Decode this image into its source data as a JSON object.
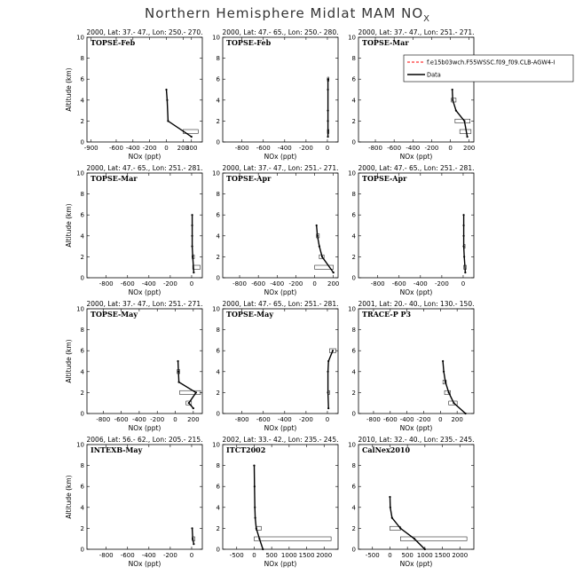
{
  "figure": {
    "title_main": "Northern Hemisphere Midlat MAM NO",
    "title_sub": "X"
  },
  "legend": {
    "model_label": "f.e15b03wch.F55WSSC.f09_f09.CLB-AGW4-I",
    "obs_label": "Data",
    "model_color": "#ff0000",
    "obs_color": "#000000"
  },
  "chart_data": [
    {
      "type": "line",
      "campaign": "TOPSE-Feb",
      "header": "2000, Lat: 37.- 47., Lon: 250.- 270.",
      "xlabel": "NOx (ppt)",
      "ylabel": "Altitude (km)",
      "xlim": [
        -950,
        430
      ],
      "xticks": [
        -900,
        -600,
        -400,
        -200,
        0,
        200,
        300
      ],
      "ylim": [
        0,
        10
      ],
      "yticks": [
        0,
        2,
        4,
        6,
        8,
        10
      ],
      "series": [
        {
          "name": "Data",
          "x": [
            0,
            10,
            20,
            300
          ],
          "y": [
            5,
            4,
            2,
            0.5
          ]
        }
      ],
      "boxes": [
        {
          "y": 1,
          "x0": 200,
          "x1": 380
        }
      ]
    },
    {
      "type": "line",
      "campaign": "TOPSE-Feb",
      "header": "2000, Lat: 47.- 65., Lon: 250.- 280.",
      "xlabel": "NOx (ppt)",
      "ylabel": "",
      "xlim": [
        -980,
        100
      ],
      "xticks": [
        -800,
        -600,
        -400,
        -200,
        0
      ],
      "ylim": [
        0,
        10
      ],
      "yticks": [
        0,
        2,
        4,
        6,
        8,
        10
      ],
      "series": [
        {
          "name": "Data",
          "x": [
            5,
            5,
            5,
            5,
            5
          ],
          "y": [
            6,
            5,
            3,
            2,
            0.5
          ]
        }
      ],
      "boxes": [
        {
          "y": 6,
          "x0": 0,
          "x1": 15
        },
        {
          "y": 1,
          "x0": 0,
          "x1": 15
        }
      ]
    },
    {
      "type": "line",
      "campaign": "TOPSE-Mar",
      "header": "2000, Lat: 37.- 47., Lon: 251.- 271.",
      "xlabel": "NOx (ppt)",
      "ylabel": "",
      "xlim": [
        -980,
        250
      ],
      "xticks": [
        -800,
        -600,
        -400,
        -200,
        0,
        200
      ],
      "ylim": [
        0,
        10
      ],
      "yticks": [
        0,
        2,
        4,
        6,
        8,
        10
      ],
      "series": [
        {
          "name": "Data",
          "x": [
            20,
            25,
            60,
            150,
            180
          ],
          "y": [
            5,
            4,
            3,
            2,
            0.5
          ]
        }
      ],
      "boxes": [
        {
          "y": 4,
          "x0": 10,
          "x1": 60
        },
        {
          "y": 2,
          "x0": 50,
          "x1": 210
        },
        {
          "y": 1,
          "x0": 100,
          "x1": 220
        }
      ]
    },
    {
      "type": "line",
      "campaign": "TOPSE-Mar",
      "header": "2000, Lat: 47.- 65., Lon: 251.- 281.",
      "xlabel": "NOx (ppt)",
      "ylabel": "Altitude (km)",
      "xlim": [
        -980,
        100
      ],
      "xticks": [
        -800,
        -600,
        -400,
        -200,
        0
      ],
      "ylim": [
        0,
        10
      ],
      "yticks": [
        0,
        2,
        4,
        6,
        8,
        10
      ],
      "series": [
        {
          "name": "Data",
          "x": [
            5,
            5,
            5,
            5,
            10,
            20
          ],
          "y": [
            6,
            5,
            4,
            3,
            2,
            0.5
          ]
        }
      ],
      "boxes": [
        {
          "y": 2,
          "x0": 5,
          "x1": 25
        },
        {
          "y": 1,
          "x0": 10,
          "x1": 80
        }
      ]
    },
    {
      "type": "line",
      "campaign": "TOPSE-Apr",
      "header": "2000, Lat: 37.- 47., Lon: 251.- 271.",
      "xlabel": "NOx (ppt)",
      "ylabel": "",
      "xlim": [
        -980,
        250
      ],
      "xticks": [
        -800,
        -600,
        -400,
        -200,
        0,
        200
      ],
      "ylim": [
        0,
        10
      ],
      "yticks": [
        0,
        2,
        4,
        6,
        8,
        10
      ],
      "series": [
        {
          "name": "Data",
          "x": [
            20,
            30,
            50,
            80,
            200
          ],
          "y": [
            5,
            4,
            3,
            2,
            0.5
          ]
        }
      ],
      "boxes": [
        {
          "y": 4,
          "x0": 20,
          "x1": 50
        },
        {
          "y": 2,
          "x0": 50,
          "x1": 100
        },
        {
          "y": 1,
          "x0": 0,
          "x1": 200
        }
      ]
    },
    {
      "type": "line",
      "campaign": "TOPSE-Apr",
      "header": "2000, Lat: 47.- 65., Lon: 251.- 281.",
      "xlabel": "NOx (ppt)",
      "ylabel": "",
      "xlim": [
        -980,
        100
      ],
      "xticks": [
        -800,
        -600,
        -400,
        -200,
        0
      ],
      "ylim": [
        0,
        10
      ],
      "yticks": [
        0,
        2,
        4,
        6,
        8,
        10
      ],
      "series": [
        {
          "name": "Data",
          "x": [
            5,
            5,
            5,
            5,
            10,
            20
          ],
          "y": [
            6,
            5,
            4,
            3,
            2,
            0.5
          ]
        }
      ],
      "boxes": [
        {
          "y": 3,
          "x0": 5,
          "x1": 15
        },
        {
          "y": 1,
          "x0": 5,
          "x1": 30
        }
      ]
    },
    {
      "type": "line",
      "campaign": "TOPSE-May",
      "header": "2000, Lat: 37.- 47., Lon: 251.- 271.",
      "xlabel": "NOx (ppt)",
      "ylabel": "Altitude (km)",
      "xlim": [
        -980,
        300
      ],
      "xticks": [
        -800,
        -600,
        -400,
        -200,
        0,
        200
      ],
      "ylim": [
        0,
        10
      ],
      "yticks": [
        0,
        2,
        4,
        6,
        8,
        10
      ],
      "series": [
        {
          "name": "Data",
          "x": [
            30,
            35,
            40,
            230,
            150,
            200
          ],
          "y": [
            5,
            4,
            3,
            2,
            1,
            0.5
          ]
        }
      ],
      "boxes": [
        {
          "y": 4,
          "x0": 20,
          "x1": 50
        },
        {
          "y": 2,
          "x0": 50,
          "x1": 280
        },
        {
          "y": 1,
          "x0": 120,
          "x1": 180
        }
      ]
    },
    {
      "type": "line",
      "campaign": "TOPSE-May",
      "header": "2000, Lat: 47.- 65., Lon: 251.- 281.",
      "xlabel": "NOx (ppt)",
      "ylabel": "",
      "xlim": [
        -980,
        100
      ],
      "xticks": [
        -800,
        -600,
        -400,
        -200,
        0
      ],
      "ylim": [
        0,
        10
      ],
      "yticks": [
        0,
        2,
        4,
        6,
        8,
        10
      ],
      "series": [
        {
          "name": "Data",
          "x": [
            50,
            10,
            5,
            5,
            10
          ],
          "y": [
            6,
            5,
            4,
            2,
            0.5
          ]
        }
      ],
      "boxes": [
        {
          "y": 6,
          "x0": 20,
          "x1": 80
        },
        {
          "y": 2,
          "x0": 5,
          "x1": 20
        }
      ]
    },
    {
      "type": "line",
      "campaign": "TRACE-P P3",
      "header": "2001, Lat: 20.- 40., Lon: 130.- 150.",
      "xlabel": "NOx (ppt)",
      "ylabel": "",
      "xlim": [
        -980,
        400
      ],
      "xticks": [
        -800,
        -600,
        -400,
        -200,
        0,
        200
      ],
      "ylim": [
        0,
        10
      ],
      "yticks": [
        0,
        2,
        4,
        6,
        8,
        10
      ],
      "series": [
        {
          "name": "Data",
          "x": [
            30,
            40,
            60,
            100,
            160,
            300
          ],
          "y": [
            5,
            4,
            3,
            2,
            1,
            0
          ]
        }
      ],
      "boxes": [
        {
          "y": 3,
          "x0": 30,
          "x1": 70
        },
        {
          "y": 2,
          "x0": 50,
          "x1": 120
        },
        {
          "y": 1,
          "x0": 100,
          "x1": 200
        }
      ]
    },
    {
      "type": "line",
      "campaign": "INTEXB-May",
      "header": "2006, Lat: 56.- 62., Lon: 205.- 215.",
      "xlabel": "NOx (ppt)",
      "ylabel": "Altitude (km)",
      "xlim": [
        -980,
        100
      ],
      "xticks": [
        -800,
        -600,
        -400,
        -200,
        0
      ],
      "ylim": [
        0,
        10
      ],
      "yticks": [
        0,
        2,
        4,
        6,
        8,
        10
      ],
      "series": [
        {
          "name": "Data",
          "x": [
            5,
            10,
            20
          ],
          "y": [
            2,
            1,
            0.5
          ]
        }
      ],
      "boxes": [
        {
          "y": 1,
          "x0": 5,
          "x1": 30
        }
      ]
    },
    {
      "type": "line",
      "campaign": "ITCT2002",
      "header": "2002, Lat: 33.- 42., Lon: 235.- 245.",
      "xlabel": "NOx (ppt)",
      "ylabel": "",
      "xlim": [
        -900,
        2400
      ],
      "xticks": [
        -500,
        0,
        500,
        1000,
        1500,
        2000
      ],
      "ylim": [
        0,
        10
      ],
      "yticks": [
        0,
        2,
        4,
        6,
        8,
        10
      ],
      "series": [
        {
          "name": "Data",
          "x": [
            0,
            10,
            20,
            30,
            60,
            150,
            250
          ],
          "y": [
            8,
            6,
            4,
            3,
            2,
            1,
            0
          ]
        }
      ],
      "boxes": [
        {
          "y": 2,
          "x0": 50,
          "x1": 200
        },
        {
          "y": 1,
          "x0": 0,
          "x1": 2200
        }
      ]
    },
    {
      "type": "line",
      "campaign": "CalNex2010",
      "header": "2010, Lat: 32.- 40., Lon: 235.- 245.",
      "xlabel": "NOx (ppt)",
      "ylabel": "",
      "xlim": [
        -900,
        2400
      ],
      "xticks": [
        -500,
        0,
        500,
        1000,
        1500,
        2000
      ],
      "ylim": [
        0,
        10
      ],
      "yticks": [
        0,
        2,
        4,
        6,
        8,
        10
      ],
      "series": [
        {
          "name": "Data",
          "x": [
            0,
            10,
            60,
            300,
            700,
            1000
          ],
          "y": [
            5,
            4,
            3,
            2,
            1,
            0
          ]
        }
      ],
      "boxes": [
        {
          "y": 2,
          "x0": 0,
          "x1": 300
        },
        {
          "y": 1,
          "x0": 300,
          "x1": 2200
        }
      ]
    }
  ]
}
